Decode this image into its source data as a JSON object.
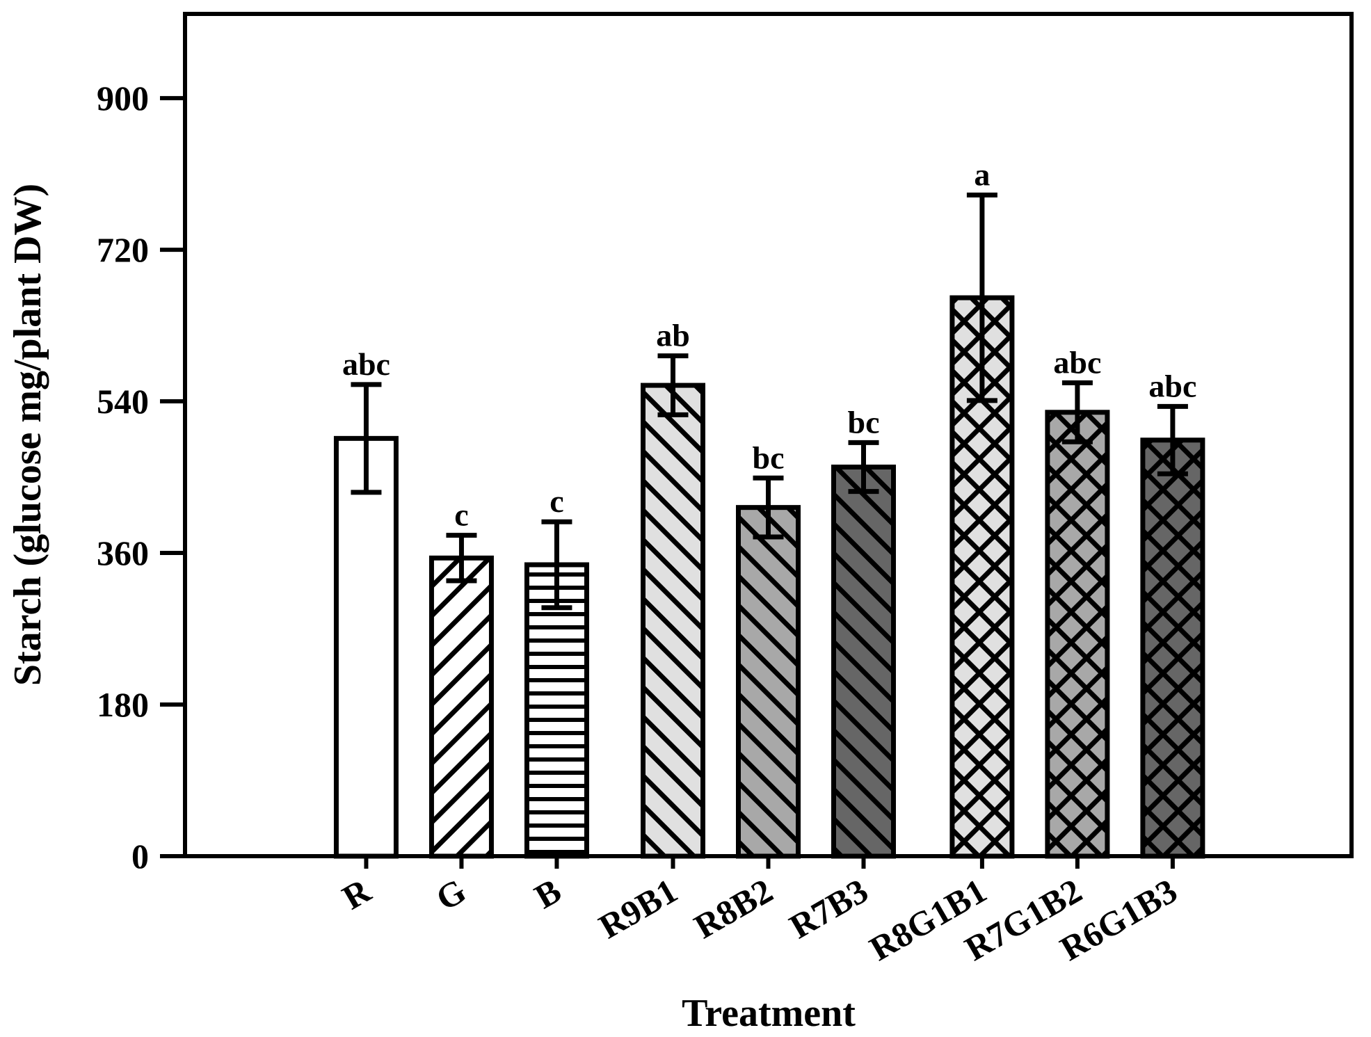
{
  "chart_data": {
    "type": "bar",
    "title": "",
    "xlabel": "Treatment",
    "ylabel": "Starch (glucose mg/plant DW)",
    "ylim": [
      0,
      1000
    ],
    "yticks": [
      0,
      180,
      360,
      540,
      720,
      900
    ],
    "grid": false,
    "categories": [
      "R",
      "G",
      "B",
      "R9B1",
      "R8B2",
      "R7B3",
      "R8G1B1",
      "R7G1B2",
      "R6G1B3"
    ],
    "groups": [
      [
        "R",
        "G",
        "B"
      ],
      [
        "R9B1",
        "R8B2",
        "R7B3"
      ],
      [
        "R8G1B1",
        "R7G1B2",
        "R6G1B3"
      ]
    ],
    "values": [
      496,
      354,
      346,
      559,
      414,
      462,
      663,
      527,
      494
    ],
    "errors": [
      64,
      27,
      51,
      35,
      35,
      29,
      122,
      35,
      40
    ],
    "significance": [
      "abc",
      "c",
      "c",
      "ab",
      "bc",
      "bc",
      "a",
      "abc",
      "abc"
    ],
    "fills": [
      "#ffffff",
      "#ffffff",
      "#ffffff",
      "#e0e0e0",
      "#a8a8a8",
      "#666666",
      "#e0e0e0",
      "#a8a8a8",
      "#666666"
    ],
    "patterns": [
      "none",
      "diag-right",
      "horizontal",
      "diag-left",
      "diag-left",
      "diag-left",
      "cross",
      "cross",
      "cross"
    ]
  }
}
